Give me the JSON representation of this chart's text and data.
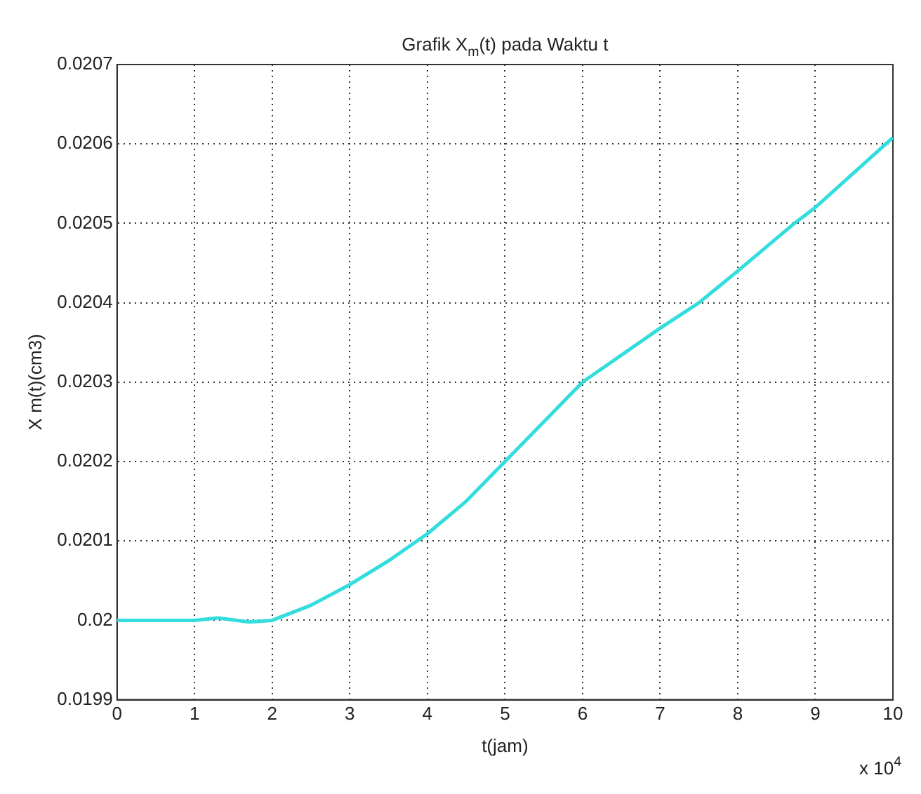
{
  "chart_data": {
    "type": "line",
    "title": "Grafik X$_{m}$(t) pada Waktu t",
    "xlabel": "t(jam)",
    "ylabel": "X m(t)(cm3)",
    "annotations": [
      "x 10$^{4}$"
    ],
    "series": [
      {
        "color": "#33dddd",
        "x": [
          0,
          1,
          1.3,
          1.7,
          2,
          2.5,
          3,
          3.5,
          4,
          4.5,
          5,
          6,
          7,
          7.5,
          8,
          8.73,
          9,
          10
        ],
        "values": [
          0.02,
          0.02,
          0.020003,
          0.019998,
          0.02,
          0.020019,
          0.020045,
          0.020075,
          0.020109,
          0.02015,
          0.0202,
          0.0203,
          0.020368,
          0.0204,
          0.02044,
          0.0205,
          0.02052,
          0.020608
        ]
      }
    ],
    "xlim": [
      0,
      10
    ],
    "ylim": [
      0.0199,
      0.0207
    ],
    "xticks": [
      0,
      1,
      2,
      3,
      4,
      5,
      6,
      7,
      8,
      9,
      10
    ],
    "yticks": [
      0.0199,
      0.02,
      0.0201,
      0.0202,
      0.0203,
      0.0204,
      0.0205,
      0.0206,
      0.0207
    ],
    "grid": true,
    "line_style": "solid",
    "marker": "none",
    "legend": false
  }
}
